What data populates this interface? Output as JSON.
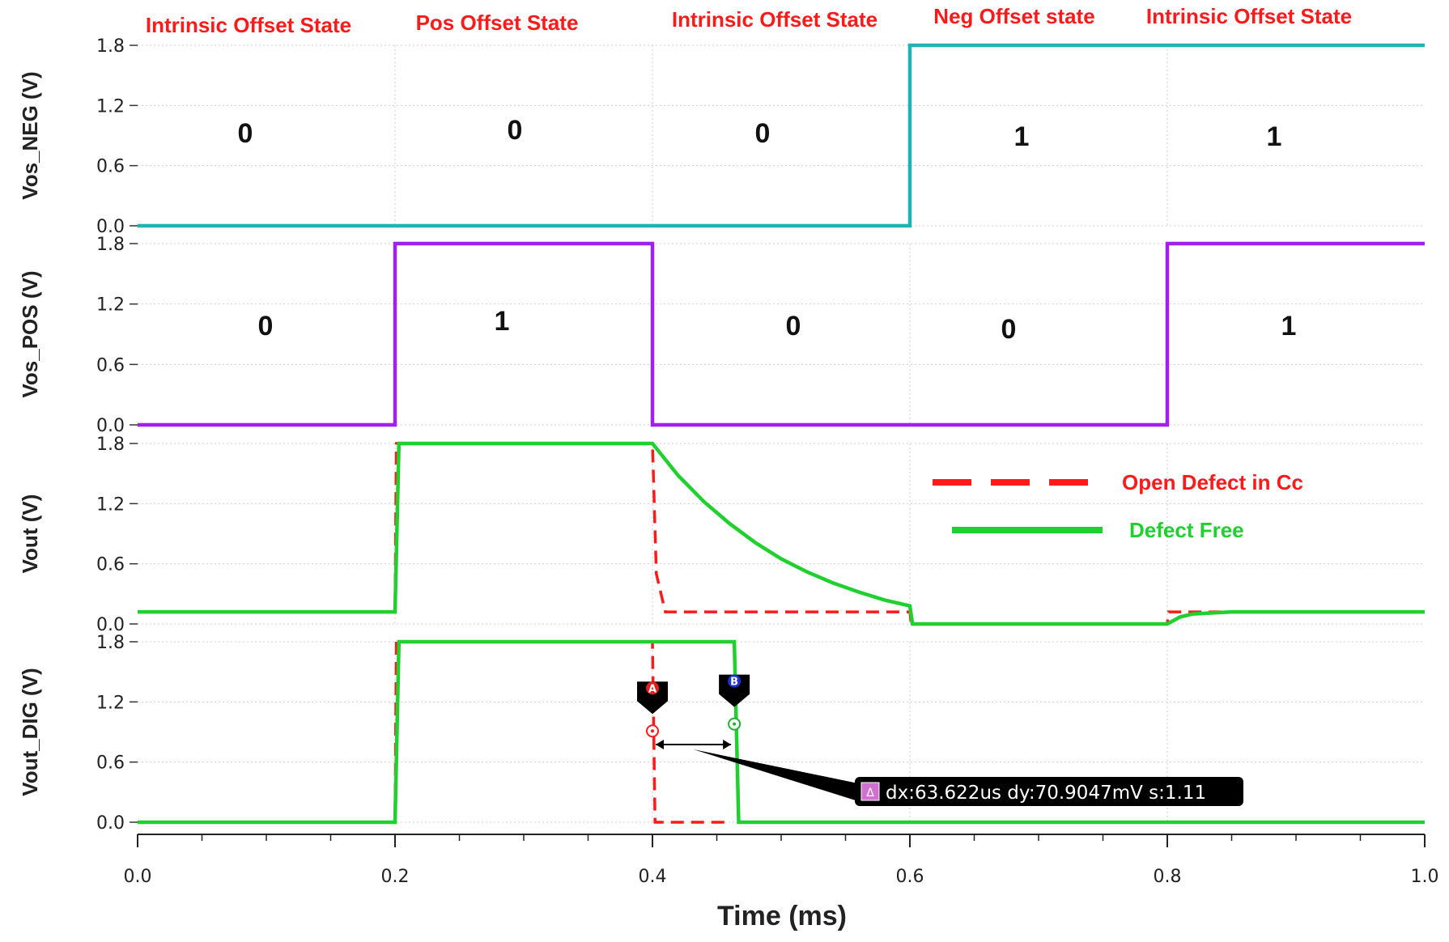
{
  "chart_data": {
    "type": "line",
    "xlabel": "Time (ms)",
    "xlim": [
      0.0,
      1.0
    ],
    "xticks": [
      "0.0",
      "0.2",
      "0.4",
      "0.6",
      "0.8",
      "1.0"
    ],
    "state_labels": [
      "Intrinsic Offset State",
      "Pos Offset State",
      "Intrinsic Offset State",
      "Neg Offset state",
      "Intrinsic Offset State"
    ],
    "legend": [
      {
        "name": "Open Defect in Cc",
        "color": "#ff1a1a",
        "style": "dashed"
      },
      {
        "name": "Defect  Free",
        "color": "#1fd02f",
        "style": "solid"
      }
    ],
    "panels": [
      {
        "ylabel": "Vos_NEG (V)",
        "ylim": [
          0.0,
          1.8
        ],
        "yticks": [
          "0.0",
          "0.6",
          "1.2",
          "1.8"
        ],
        "bits": [
          "0",
          "0",
          "0",
          "1",
          "1"
        ],
        "series": [
          {
            "color": "#1fb3b3",
            "style": "solid",
            "x": [
              0.0,
              0.6,
              0.6,
              1.0
            ],
            "y": [
              0.0,
              0.0,
              1.8,
              1.8
            ]
          }
        ]
      },
      {
        "ylabel": "Vos_POS (V)",
        "ylim": [
          0.0,
          1.8
        ],
        "yticks": [
          "0.0",
          "0.6",
          "1.2",
          "1.8"
        ],
        "bits": [
          "0",
          "1",
          "0",
          "0",
          "1"
        ],
        "series": [
          {
            "color": "#a020f0",
            "style": "solid",
            "x": [
              0.0,
              0.2,
              0.2,
              0.4,
              0.4,
              0.8,
              0.8,
              1.0
            ],
            "y": [
              0.0,
              0.0,
              1.8,
              1.8,
              0.0,
              0.0,
              1.8,
              1.8
            ]
          }
        ]
      },
      {
        "ylabel": "Vout (V)",
        "ylim": [
          0.0,
          1.8
        ],
        "yticks": [
          "0.0",
          "0.6",
          "1.2",
          "1.8"
        ],
        "bits": [],
        "series": [
          {
            "color": "#ff1a1a",
            "style": "dashed",
            "x": [
              0.0,
              0.2,
              0.201,
              0.4,
              0.403,
              0.41,
              0.6,
              0.601,
              0.8,
              0.801,
              1.0
            ],
            "y": [
              0.12,
              0.12,
              1.8,
              1.8,
              0.5,
              0.12,
              0.12,
              0.0,
              0.0,
              0.12,
              0.12
            ]
          },
          {
            "color": "#1fd02f",
            "style": "solid",
            "x": [
              0.0,
              0.2,
              0.203,
              0.4,
              0.42,
              0.44,
              0.46,
              0.48,
              0.5,
              0.52,
              0.54,
              0.56,
              0.58,
              0.6,
              0.602,
              0.8,
              0.81,
              0.82,
              0.85,
              0.9,
              1.0
            ],
            "y": [
              0.12,
              0.12,
              1.8,
              1.8,
              1.48,
              1.22,
              1.0,
              0.81,
              0.65,
              0.52,
              0.41,
              0.32,
              0.24,
              0.18,
              0.0,
              0.0,
              0.07,
              0.1,
              0.12,
              0.12,
              0.12
            ]
          }
        ]
      },
      {
        "ylabel": "Vout_DIG (V)",
        "ylim": [
          0.0,
          1.8
        ],
        "yticks": [
          "0.0",
          "0.6",
          "1.2",
          "1.8"
        ],
        "bits": [],
        "series": [
          {
            "color": "#ff1a1a",
            "style": "dashed",
            "x": [
              0.0,
              0.2,
              0.201,
              0.4,
              0.402,
              0.46
            ],
            "y": [
              0.0,
              0.0,
              1.8,
              1.8,
              0.0,
              0.0
            ]
          },
          {
            "color": "#1fd02f",
            "style": "solid",
            "x": [
              0.0,
              0.2,
              0.203,
              0.4636,
              0.467,
              1.0
            ],
            "y": [
              0.0,
              0.0,
              1.8,
              1.8,
              0.0,
              0.0
            ]
          }
        ],
        "markers": [
          {
            "label": "A",
            "x": 0.4,
            "y": 0.91,
            "color": "#ff1a1a"
          },
          {
            "label": "B",
            "x": 0.4636,
            "y": 0.98,
            "color": "#1fb02f"
          }
        ],
        "annotation": "dx:63.622us dy:70.9047mV s:1.11"
      }
    ]
  }
}
